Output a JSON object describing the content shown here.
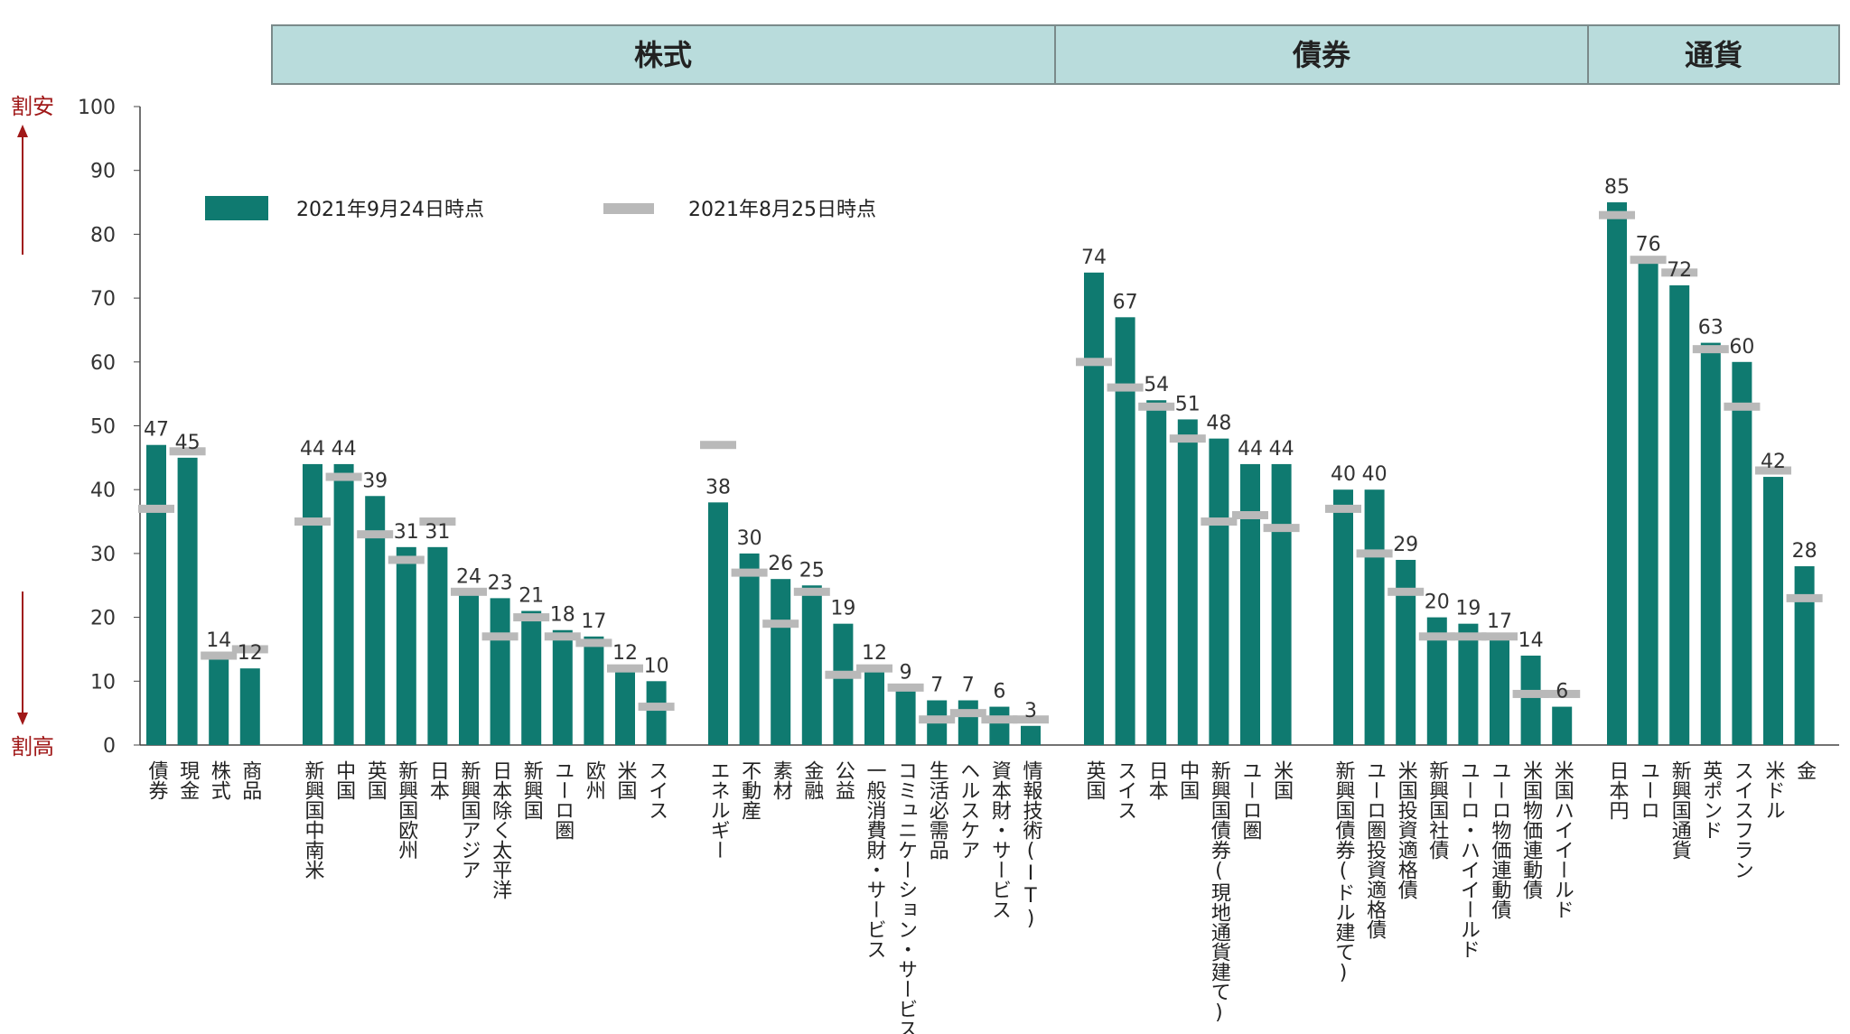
{
  "chart_data": {
    "type": "bar",
    "ylim": [
      0,
      100
    ],
    "yticks": [
      "0",
      "10",
      "20",
      "30",
      "40",
      "50",
      "60",
      "70",
      "80",
      "90",
      "100"
    ],
    "ytop_label": "割安",
    "ybottom_label": "割高",
    "legend": [
      {
        "name": "2021年9月24日時点",
        "color": "#0f7a70",
        "kind": "bar"
      },
      {
        "name": "2021年8月25日時点",
        "color": "#b9b9b9",
        "kind": "marker"
      }
    ],
    "colors": {
      "bar": "#0f7a70",
      "marker": "#b9b9b9",
      "header_fill": "#b9dcdc",
      "header_border": "#7a8a8a",
      "arrow": "#a01818"
    },
    "header_groups": [
      "株式",
      "債券",
      "通貨"
    ],
    "groups": [
      {
        "categories": [
          {
            "label": "債券",
            "current": 47,
            "previous": 37
          },
          {
            "label": "現金",
            "current": 45,
            "previous": 46
          },
          {
            "label": "株式",
            "current": 14,
            "previous": 14
          },
          {
            "label": "商品",
            "current": 12,
            "previous": 15
          }
        ]
      },
      {
        "categories": [
          {
            "label": "新興国中南米",
            "current": 44,
            "previous": 35
          },
          {
            "label": "中国",
            "current": 44,
            "previous": 42
          },
          {
            "label": "英国",
            "current": 39,
            "previous": 33
          },
          {
            "label": "新興国欧州",
            "current": 31,
            "previous": 29
          },
          {
            "label": "日本",
            "current": 31,
            "previous": 35
          },
          {
            "label": "新興国アジア",
            "current": 24,
            "previous": 24
          },
          {
            "label": "日本除く太平洋",
            "current": 23,
            "previous": 17
          },
          {
            "label": "新興国",
            "current": 21,
            "previous": 20
          },
          {
            "label": "ユーロ圏",
            "current": 18,
            "previous": 17
          },
          {
            "label": "欧州",
            "current": 17,
            "previous": 16
          },
          {
            "label": "米国",
            "current": 12,
            "previous": 12
          },
          {
            "label": "スイス",
            "current": 10,
            "previous": 6
          }
        ]
      },
      {
        "categories": [
          {
            "label": "エネルギー",
            "current": 38,
            "previous": 47
          },
          {
            "label": "不動産",
            "current": 30,
            "previous": 27
          },
          {
            "label": "素材",
            "current": 26,
            "previous": 19
          },
          {
            "label": "金融",
            "current": 25,
            "previous": 24
          },
          {
            "label": "公益",
            "current": 19,
            "previous": 11
          },
          {
            "label": "一般消費財・サービス",
            "current": 12,
            "previous": 12
          },
          {
            "label": "コミュニケーション・サービス",
            "current": 9,
            "previous": 9
          },
          {
            "label": "生活必需品",
            "current": 7,
            "previous": 4
          },
          {
            "label": "ヘルスケア",
            "current": 7,
            "previous": 5
          },
          {
            "label": "資本財・サービス",
            "current": 6,
            "previous": 4
          },
          {
            "label": "情報技術(IT)",
            "current": 3,
            "previous": 4
          }
        ]
      },
      {
        "categories": [
          {
            "label": "英国",
            "current": 74,
            "previous": 60
          },
          {
            "label": "スイス",
            "current": 67,
            "previous": 56
          },
          {
            "label": "日本",
            "current": 54,
            "previous": 53
          },
          {
            "label": "中国",
            "current": 51,
            "previous": 48
          },
          {
            "label": "新興国債券(現地通貨建て)",
            "current": 48,
            "previous": 35
          },
          {
            "label": "ユーロ圏",
            "current": 44,
            "previous": 36
          },
          {
            "label": "米国",
            "current": 44,
            "previous": 34
          }
        ]
      },
      {
        "categories": [
          {
            "label": "新興国債券(ドル建て)",
            "current": 40,
            "previous": 37
          },
          {
            "label": "ユーロ圏投資適格債",
            "current": 40,
            "previous": 30
          },
          {
            "label": "米国投資適格債",
            "current": 29,
            "previous": 24
          },
          {
            "label": "新興国社債",
            "current": 20,
            "previous": 17
          },
          {
            "label": "ユーロ・ハイイールド",
            "current": 19,
            "previous": 17
          },
          {
            "label": "ユーロ物価連動債",
            "current": 17,
            "previous": 17
          },
          {
            "label": "米国物価連動債",
            "current": 14,
            "previous": 8
          },
          {
            "label": "米国ハイイールド",
            "current": 6,
            "previous": 8
          }
        ]
      },
      {
        "categories": [
          {
            "label": "日本円",
            "current": 85,
            "previous": 83
          },
          {
            "label": "ユーロ",
            "current": 76,
            "previous": 76
          },
          {
            "label": "新興国通貨",
            "current": 72,
            "previous": 74
          },
          {
            "label": "英ポンド",
            "current": 63,
            "previous": 62
          },
          {
            "label": "スイスフラン",
            "current": 60,
            "previous": 53
          },
          {
            "label": "米ドル",
            "current": 42,
            "previous": 43
          },
          {
            "label": "金",
            "current": 28,
            "previous": 23
          }
        ]
      }
    ]
  }
}
